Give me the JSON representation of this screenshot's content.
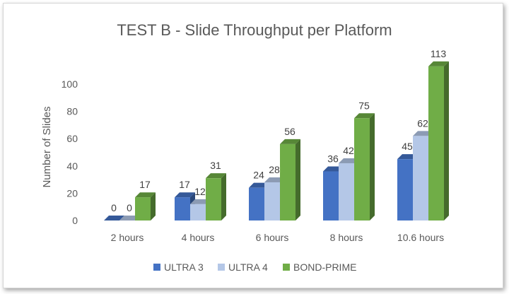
{
  "chart_data": {
    "type": "bar",
    "title": "TEST B - Slide Throughput per Platform",
    "xlabel": "",
    "ylabel": "Number of Slides",
    "categories": [
      "2 hours",
      "4 hours",
      "6 hours",
      "8 hours",
      "10.6 hours"
    ],
    "series": [
      {
        "name": "ULTRA 3",
        "values": [
          0,
          17,
          24,
          36,
          45
        ],
        "color": "#4472c4"
      },
      {
        "name": "ULTRA 4",
        "values": [
          0,
          12,
          28,
          42,
          62
        ],
        "color": "#b4c7e7"
      },
      {
        "name": "BOND-PRIME",
        "values": [
          17,
          31,
          56,
          75,
          113
        ],
        "color": "#70ad47"
      }
    ],
    "yticks": [
      0,
      20,
      40,
      60,
      80,
      100
    ],
    "ylim": [
      0,
      120
    ],
    "grid": false,
    "legend": "bottom",
    "style": "3d-column"
  }
}
